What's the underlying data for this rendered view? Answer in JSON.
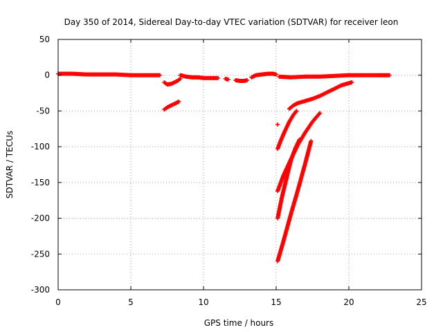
{
  "chart_data": {
    "type": "scatter",
    "title": "Day 350 of 2014, Sidereal Day-to-day VTEC variation (SDTVAR) for receiver leon",
    "xlabel": "GPS time / hours",
    "ylabel": "SDTVAR / TECUs",
    "xlim": [
      0,
      25
    ],
    "ylim": [
      -300,
      50
    ],
    "xticks": [
      "0",
      "5",
      "10",
      "15",
      "20",
      "25"
    ],
    "yticks": [
      "50",
      "0",
      "-50",
      "-100",
      "-150",
      "-200",
      "-250",
      "-300"
    ],
    "grid": true,
    "marker": "plus",
    "color": "#ff0000",
    "segments": [
      {
        "x": [
          0.0,
          1.0,
          2.0,
          3.0,
          4.0,
          5.0,
          6.0,
          7.0
        ],
        "y": [
          2,
          2,
          1,
          1,
          1,
          0,
          0,
          0
        ]
      },
      {
        "x": [
          7.3,
          7.5,
          7.8,
          8.0,
          8.2,
          8.4
        ],
        "y": [
          -10,
          -13,
          -12,
          -10,
          -8,
          -5
        ]
      },
      {
        "x": [
          7.3,
          7.5,
          7.8,
          8.0,
          8.3
        ],
        "y": [
          -48,
          -45,
          -42,
          -40,
          -37
        ]
      },
      {
        "x": [
          8.4,
          8.8,
          9.2,
          9.6,
          10.0,
          10.5,
          11.0
        ],
        "y": [
          0,
          -2,
          -3,
          -3,
          -4,
          -4,
          -4
        ]
      },
      {
        "x": [
          11.5,
          11.7
        ],
        "y": [
          -5,
          -6
        ]
      },
      {
        "x": [
          12.2,
          12.5,
          12.8,
          13.0
        ],
        "y": [
          -7,
          -8,
          -8,
          -7
        ]
      },
      {
        "x": [
          13.3,
          13.6,
          14.0,
          14.4,
          14.8,
          15.0
        ],
        "y": [
          -3,
          0,
          1,
          2,
          2,
          1
        ]
      },
      {
        "x": [
          15.2,
          16.0,
          17.0,
          18.0,
          19.0,
          20.0,
          21.0,
          22.0,
          22.8
        ],
        "y": [
          -2,
          -3,
          -2,
          -2,
          -1,
          0,
          0,
          0,
          0
        ]
      },
      {
        "x": [
          15.9,
          16.2,
          16.5,
          17.0,
          17.5,
          18.0,
          18.5,
          19.0,
          19.5,
          20.2
        ],
        "y": [
          -47,
          -42,
          -39,
          -36,
          -33,
          -29,
          -24,
          -19,
          -14,
          -10
        ]
      },
      {
        "x": [
          15.1,
          15.3,
          15.6,
          15.9,
          16.2,
          16.4
        ],
        "y": [
          -103,
          -92,
          -78,
          -65,
          -55,
          -50
        ]
      },
      {
        "x": [
          15.1,
          15.5,
          16.0,
          16.5,
          17.0,
          17.5,
          18.0
        ],
        "y": [
          -162,
          -140,
          -118,
          -97,
          -80,
          -65,
          -53
        ]
      },
      {
        "x": [
          15.1,
          15.4,
          15.7,
          16.0,
          16.3,
          16.6
        ],
        "y": [
          -200,
          -170,
          -145,
          -120,
          -103,
          -90
        ]
      },
      {
        "x": [
          15.1,
          15.5,
          16.0,
          16.5,
          17.0,
          17.4
        ],
        "y": [
          -260,
          -232,
          -195,
          -160,
          -123,
          -92
        ]
      },
      {
        "x": [
          15.1
        ],
        "y": [
          -69
        ]
      }
    ]
  }
}
